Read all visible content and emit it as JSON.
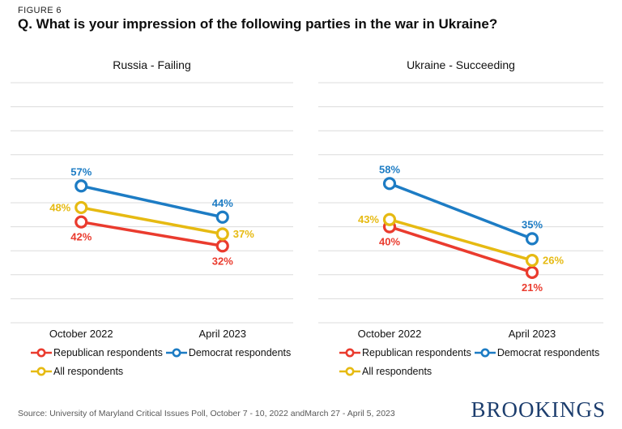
{
  "header": {
    "eyebrow": "FIGURE 6",
    "title": "Q. What is your impression of the following parties in the war in Ukraine?"
  },
  "colors": {
    "republican": "#ea3b2e",
    "democrat": "#1d7cc4",
    "all": "#e6ba12",
    "gridline": "#dcdcdc",
    "axis_text": "#111111",
    "source_text": "#595959",
    "logo_navy": "#1d3e6e"
  },
  "chart_data": [
    {
      "type": "line",
      "title": "Russia - Failing",
      "x": [
        "October 2022",
        "April 2023"
      ],
      "ylim": [
        0,
        100
      ],
      "gridline_step": 10,
      "grid": true,
      "legend_position": "bottom",
      "series": [
        {
          "name": "Republican respondents",
          "key": "republican",
          "values": [
            42,
            32
          ],
          "label_positions": [
            "below",
            "below"
          ]
        },
        {
          "name": "Democrat respondents",
          "key": "democrat",
          "values": [
            57,
            44
          ],
          "label_positions": [
            "above",
            "above"
          ]
        },
        {
          "name": "All respondents",
          "key": "all",
          "values": [
            48,
            37
          ],
          "label_positions": [
            "left",
            "right"
          ]
        }
      ]
    },
    {
      "type": "line",
      "title": "Ukraine - Succeeding",
      "x": [
        "October 2022",
        "April 2023"
      ],
      "ylim": [
        0,
        100
      ],
      "gridline_step": 10,
      "grid": true,
      "legend_position": "bottom",
      "series": [
        {
          "name": "Republican respondents",
          "key": "republican",
          "values": [
            40,
            21
          ],
          "label_positions": [
            "below",
            "below"
          ]
        },
        {
          "name": "Democrat respondents",
          "key": "democrat",
          "values": [
            58,
            35
          ],
          "label_positions": [
            "above",
            "above"
          ]
        },
        {
          "name": "All respondents",
          "key": "all",
          "values": [
            43,
            26
          ],
          "label_positions": [
            "left",
            "right"
          ]
        }
      ]
    }
  ],
  "legend": {
    "items": [
      {
        "label": "Republican respondents",
        "key": "republican"
      },
      {
        "label": "Democrat respondents",
        "key": "democrat"
      },
      {
        "label": "All respondents",
        "key": "all"
      }
    ]
  },
  "footer": {
    "source": "Source: University of Maryland Critical Issues Poll, October 7 - 10, 2022 andMarch 27 - April 5, 2023",
    "logo": "BROOKINGS"
  }
}
